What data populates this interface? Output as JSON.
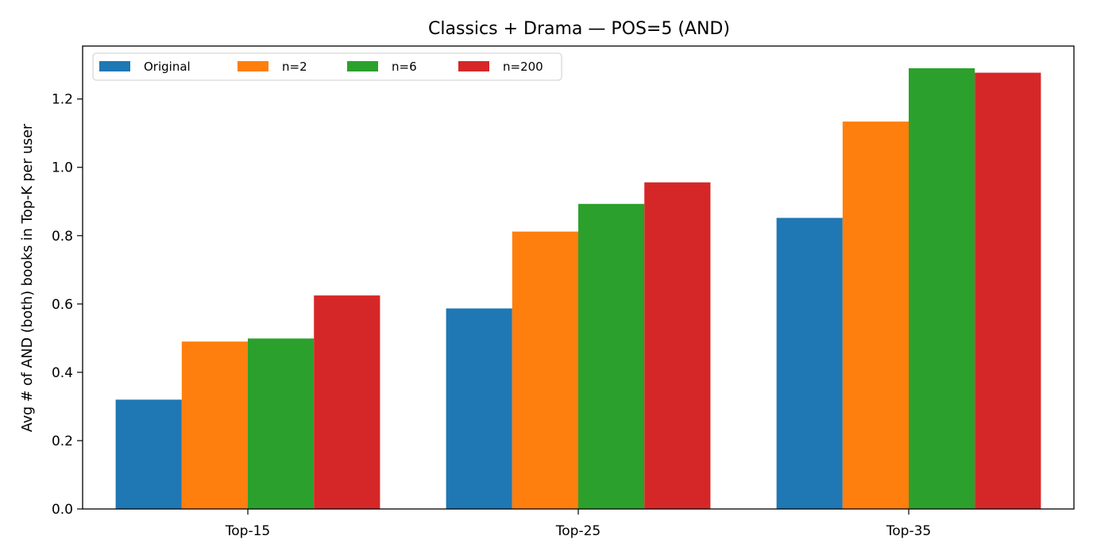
{
  "chart_data": {
    "type": "bar",
    "title": "Classics + Drama — POS=5 (AND)",
    "xlabel": "",
    "ylabel": "Avg # of AND (both) books in Top-K per user",
    "categories": [
      "Top-15",
      "Top-25",
      "Top-35"
    ],
    "series": [
      {
        "name": "Original",
        "color": "#1f77b4",
        "values": [
          0.32,
          0.587,
          0.852
        ]
      },
      {
        "name": "n=2",
        "color": "#ff7f0e",
        "values": [
          0.49,
          0.812,
          1.134
        ]
      },
      {
        "name": "n=6",
        "color": "#2ca02c",
        "values": [
          0.499,
          0.893,
          1.29
        ]
      },
      {
        "name": "n=200",
        "color": "#d62728",
        "values": [
          0.625,
          0.956,
          1.277
        ]
      }
    ],
    "ylim": [
      0,
      1.355
    ],
    "yticks": [
      0.0,
      0.2,
      0.4,
      0.6,
      0.8,
      1.0,
      1.2
    ],
    "ytick_labels": [
      "0.0",
      "0.2",
      "0.4",
      "0.6",
      "0.8",
      "1.0",
      "1.2"
    ],
    "grid": false,
    "legend": {
      "placement": "top-left",
      "columns": 4
    }
  }
}
